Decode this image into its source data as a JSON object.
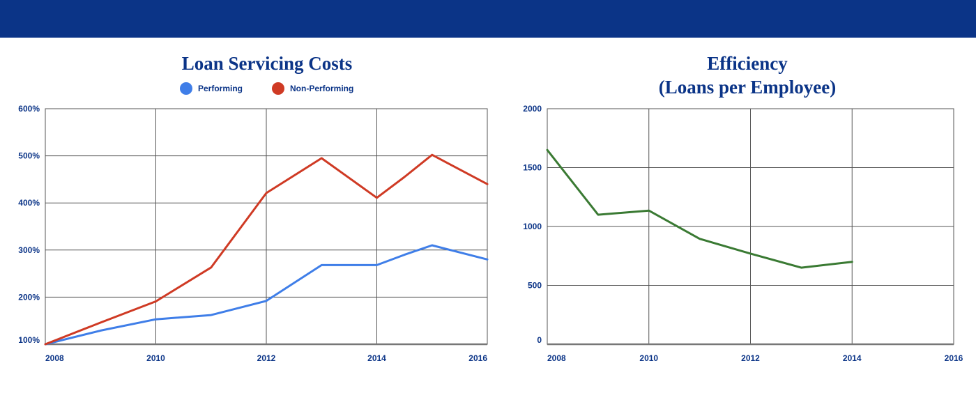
{
  "colors": {
    "header": "#0b3487",
    "text": "#0b3487",
    "performing": "#3f7ee8",
    "non_performing": "#cf3a24",
    "efficiency": "#3a7a33",
    "grid": "#555555"
  },
  "chart_data": [
    {
      "type": "line",
      "title": "Loan Servicing Costs",
      "x": [
        2008,
        2009,
        2010,
        2011,
        2012,
        2013,
        2014,
        2014.5,
        2015,
        2016
      ],
      "x_ticks": [
        "2008",
        "2010",
        "2012",
        "2014",
        "2016"
      ],
      "x_tick_values": [
        2008,
        2010,
        2012,
        2014,
        2016
      ],
      "y_ticks": [
        "100%",
        "200%",
        "300%",
        "400%",
        "500%",
        "600%"
      ],
      "y_tick_values": [
        100,
        200,
        300,
        400,
        500,
        600
      ],
      "xlim": [
        2008,
        2016
      ],
      "ylim": [
        100,
        600
      ],
      "grid": true,
      "legend": "top",
      "series": [
        {
          "name": "Performing",
          "color": "#3f7ee8",
          "values": [
            100,
            129,
            153,
            162,
            192,
            268,
            268,
            290,
            310,
            280
          ]
        },
        {
          "name": "Non-Performing",
          "color": "#cf3a24",
          "values": [
            100,
            146,
            191,
            263,
            421,
            495,
            411,
            455,
            502,
            440
          ]
        }
      ]
    },
    {
      "type": "line",
      "title": "Efficiency\n(Loans per Employee)",
      "x": [
        2008,
        2009,
        2010,
        2011,
        2012,
        2013,
        2014
      ],
      "x_ticks": [
        "2008",
        "2010",
        "2012",
        "2014",
        "2016"
      ],
      "x_tick_values": [
        2008,
        2010,
        2012,
        2014,
        2016
      ],
      "y_ticks": [
        "0",
        "500",
        "1000",
        "1500",
        "2000"
      ],
      "y_tick_values": [
        0,
        500,
        1000,
        1500,
        2000
      ],
      "xlim": [
        2008,
        2016
      ],
      "ylim": [
        0,
        2000
      ],
      "grid": true,
      "series": [
        {
          "color": "#3a7a33",
          "values": [
            1650,
            1100,
            1135,
            895,
            770,
            650,
            700
          ]
        }
      ]
    }
  ]
}
